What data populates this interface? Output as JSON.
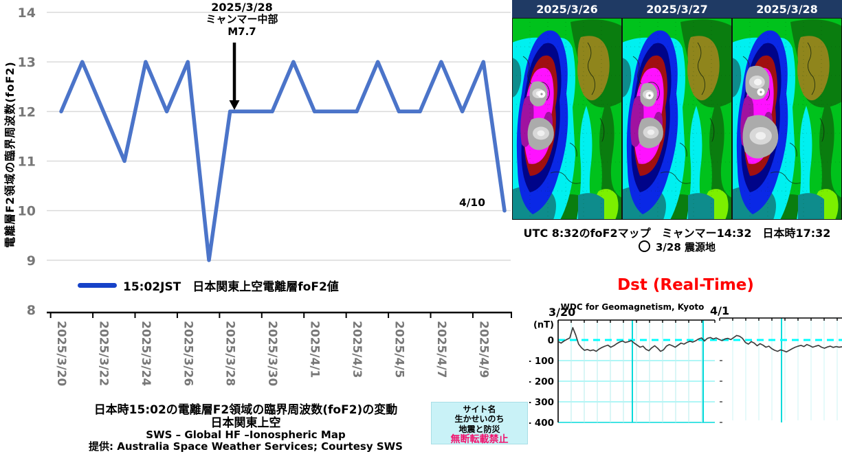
{
  "colors": {
    "line_blue": "#4B74C9",
    "legend_blue": "#1642C8",
    "grid_gray": "#DADADA",
    "axis_label_gray": "#777777",
    "navy_header": "#1F3A64",
    "dst_red": "#FF0000",
    "cyan_grid_minor": "#C0F0F0",
    "cyan_grid_major": "#00DADA",
    "cyan_zero": "#00FFFF",
    "dst_line": "#3C3C3C",
    "stamp_bg": "#C9F2F7",
    "warning_pink": "#F0146E"
  },
  "fof2": {
    "y_axis_title": "電離層F2領域の臨界周波数(foF2)",
    "annotation": [
      "2025/3/28",
      "ミャンマー中部",
      "M7.7"
    ],
    "end_point_label": "4/10",
    "legend_label": "15:02JST　日本関東上空電離層foF2値",
    "captions": [
      "日本時15:02の電離層F2領域の臨界周波数(foF2)の変動",
      "日本関東上空",
      "SWS – Global HF –Ionospheric Map",
      "提供: Australia Space Weather Services; Courtesy SWS"
    ]
  },
  "stamp_box": {
    "lines": [
      "サイト名",
      "生かせいのち",
      "地震と防災"
    ],
    "warning": "無断転載禁止"
  },
  "map_panel": {
    "dates": [
      "2025/3/26",
      "2025/3/27",
      "2025/3/28"
    ],
    "caption": "UTC 8:32のfoF2マップ　ミャンマー14:32　日本時17:32",
    "epicenter_note": "3/28  震源地",
    "palette": [
      "#00C21C",
      "#0A7D0F",
      "#8F851C",
      "#00F0F0",
      "#0E8C8C",
      "#0A28E6",
      "#000489",
      "#A01010",
      "#FF12FF",
      "#A012A0",
      "#ABABAB",
      "#F5F5F5"
    ]
  },
  "dst_panel": {
    "title": "Dst (Real-Time)",
    "subtitle": "WDC for Geomagnetism, Kyoto",
    "x_labels": [
      "3/20",
      "4/1"
    ],
    "unit": "(nT)",
    "y_ticks": [
      "0",
      "- 100",
      "- 200",
      "- 300",
      "- 400"
    ]
  },
  "chart_data": [
    {
      "type": "line",
      "title": "日本関東上空電離層foF2値 15:02JST",
      "ylabel": "電離層F2領域の臨界周波数(foF2)",
      "ylim": [
        8,
        14
      ],
      "y_ticks": [
        14,
        13,
        12,
        11,
        10,
        9,
        8
      ],
      "categories": [
        "2025/3/20",
        "2025/3/21",
        "2025/3/22",
        "2025/3/23",
        "2025/3/24",
        "2025/3/25",
        "2025/3/26",
        "2025/3/27",
        "2025/3/28",
        "2025/3/29",
        "2025/3/30",
        "2025/3/31",
        "2025/4/1",
        "2025/4/2",
        "2025/4/3",
        "2025/4/4",
        "2025/4/5",
        "2025/4/6",
        "2025/4/7",
        "2025/4/8",
        "2025/4/9",
        "2025/4/10"
      ],
      "values": [
        12,
        13,
        12,
        11,
        13,
        12,
        13,
        9,
        12,
        12,
        12,
        13,
        12,
        12,
        12,
        13,
        12,
        12,
        13,
        12,
        13,
        10
      ],
      "x_tick_labels": [
        "2025/3/20",
        "2025/3/22",
        "2025/3/24",
        "2025/3/26",
        "2025/3/28",
        "2025/3/30",
        "2025/4/1",
        "2025/4/3",
        "2025/4/5",
        "2025/4/7",
        "2025/4/9"
      ],
      "annotation": {
        "date": "2025/3/28",
        "text": "ミャンマー中部 M7.7",
        "value_at_date": 12
      },
      "grid": true,
      "legend_position": "bottom"
    },
    {
      "type": "line",
      "title": "Dst (Real-Time)",
      "subtitle": "WDC for Geomagnetism, Kyoto",
      "unit": "nT",
      "ylim": [
        -400,
        100
      ],
      "y_ticks": [
        0,
        -100,
        -200,
        -300,
        -400
      ],
      "x_start_label": "3/20",
      "x_seam_label": "4/1",
      "values": [
        -8,
        -15,
        -5,
        3,
        10,
        60,
        25,
        -20,
        -38,
        -50,
        -46,
        -52,
        -48,
        -55,
        -44,
        -36,
        -30,
        -25,
        -35,
        -28,
        -18,
        -10,
        -5,
        -12,
        -8,
        -3,
        -15,
        -25,
        -35,
        -30,
        -45,
        -52,
        -38,
        -28,
        -40,
        -55,
        -48,
        -30,
        -22,
        -28,
        -35,
        -25,
        -15,
        -20,
        -12,
        -6,
        -10,
        -4,
        5,
        10,
        -5,
        8,
        12,
        5,
        10,
        3,
        -3,
        5,
        8,
        2,
        12,
        22,
        18,
        8,
        -12,
        -20,
        -8,
        -15,
        -28,
        -18,
        -25,
        -35,
        -30,
        -42,
        -50,
        -55,
        -48,
        -52,
        -58,
        -50,
        -42,
        -35,
        -30,
        -26,
        -32,
        -22,
        -28,
        -35,
        -30,
        -26,
        -35,
        -40,
        -34,
        -30,
        -36,
        -32,
        -35,
        -33
      ],
      "grid": true
    },
    {
      "type": "heatmap",
      "title": "foF2 maps at UTC 8:32",
      "dates": [
        "2025/3/26",
        "2025/3/27",
        "2025/3/28"
      ],
      "note": "global foF2 contour maps, epicenter marker on each panel"
    }
  ]
}
